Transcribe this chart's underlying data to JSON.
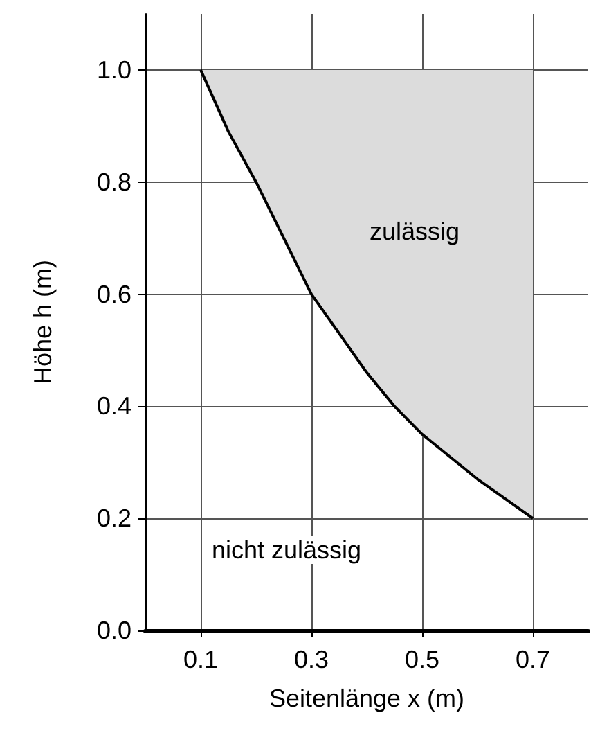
{
  "chart_data": {
    "type": "line",
    "xlabel": "Seitenlänge x (m)",
    "ylabel": "Höhe h (m)",
    "x": [
      0.1,
      0.15,
      0.2,
      0.25,
      0.3,
      0.35,
      0.4,
      0.45,
      0.5,
      0.55,
      0.6,
      0.65,
      0.7
    ],
    "series": [
      {
        "color": "#000000",
        "values": [
          1.0,
          0.89,
          0.8,
          0.7,
          0.6,
          0.53,
          0.46,
          0.4,
          0.35,
          0.31,
          0.27,
          0.235,
          0.2
        ],
        "lower": [
          1.0,
          0.89,
          0.8,
          0.7,
          0.6,
          0.53,
          0.46,
          0.4,
          0.35,
          0.31,
          0.27,
          0.235,
          0.2
        ],
        "upper": [
          1.0,
          1.0,
          1.0,
          1.0,
          1.0,
          1.0,
          1.0,
          1.0,
          1.0,
          1.0,
          1.0,
          1.0,
          1.0
        ]
      }
    ],
    "xlim": [
      0,
      0.8
    ],
    "xticks": [
      0.1,
      0.3,
      0.5,
      0.7
    ],
    "ylim": [
      0,
      1.1
    ],
    "yticks": [
      {
        "value": 0,
        "label": "0.0"
      },
      {
        "value": 0.2,
        "label": "0.2"
      },
      {
        "value": 0.4,
        "label": "0.4"
      },
      {
        "value": 0.6,
        "label": "0.6"
      },
      {
        "value": 0.8,
        "label": "0.8"
      },
      {
        "value": 1.0,
        "label": "1.0"
      }
    ],
    "annotations": [
      "zulässig",
      "nicht zulässig"
    ],
    "grid": true,
    "marker": "none",
    "line_style": "solid"
  }
}
